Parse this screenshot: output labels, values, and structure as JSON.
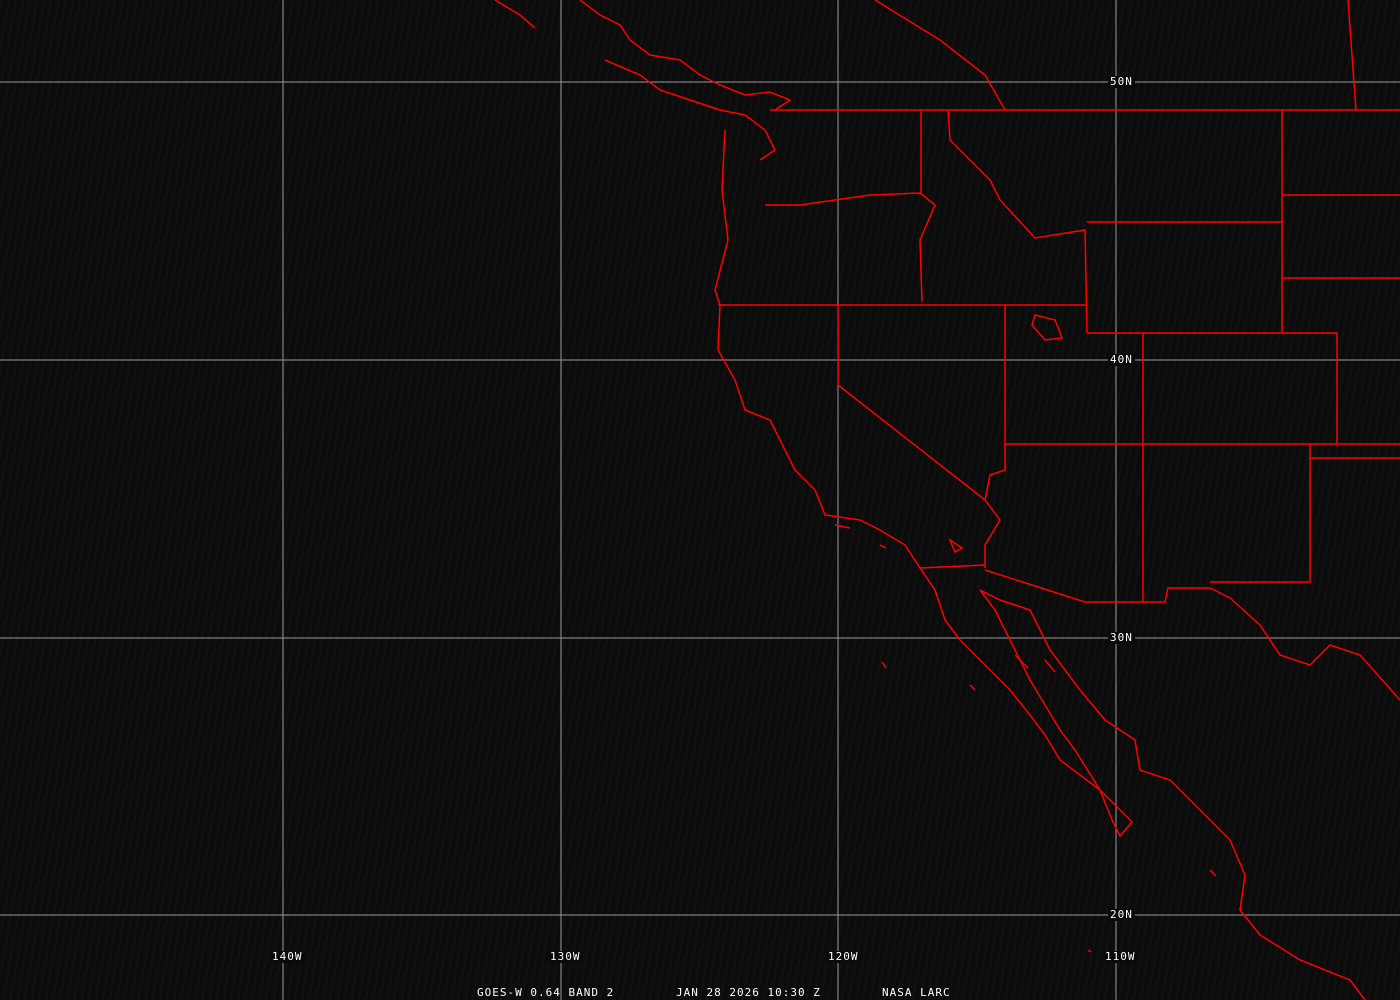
{
  "footer": {
    "satellite": "GOES-W 0.64 BAND 2",
    "datetime": "JAN 28 2026 10:30 Z",
    "source": "NASA LARC"
  },
  "grid": {
    "lon_labels": [
      "140W",
      "130W",
      "120W",
      "110W"
    ],
    "lat_labels": [
      "50N",
      "40N",
      "30N",
      "20N"
    ]
  },
  "colors": {
    "boundaries": "#ff0000",
    "grid": "#a0a0a0",
    "background": "#0c0c0c"
  }
}
